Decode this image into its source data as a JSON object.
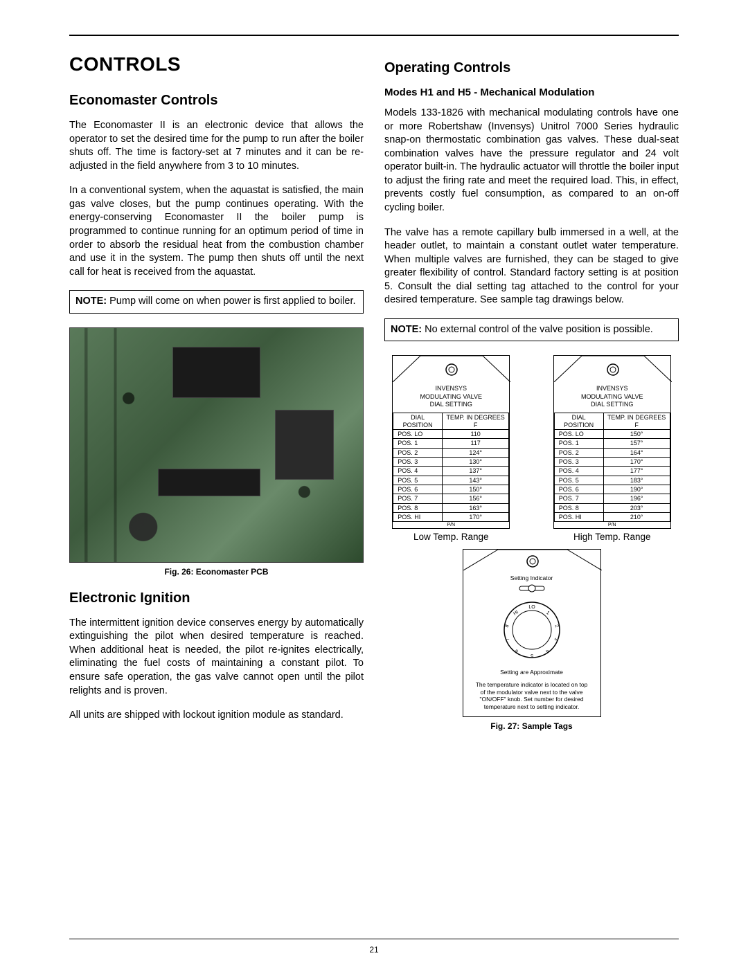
{
  "page_number": "21",
  "main_heading": "CONTROLS",
  "left": {
    "h2a": "Economaster Controls",
    "p1": "The Economaster II is an electronic device that allows the operator to set the desired time for the pump to run after the boiler shuts off. The time is factory-set at 7 minutes and it can be re-adjusted in the field anywhere from 3 to 10 minutes.",
    "p2": "In a conventional system, when the aquastat is satisfied, the main gas valve closes, but the pump continues operating. With the energy-conserving Economaster II the boiler pump is programmed to continue running for an optimum period of time in order to absorb the residual heat from the combustion chamber and use it in the system. The pump then shuts off until the next call for heat is received from the aquastat.",
    "note1_bold": "NOTE:",
    "note1_text": " Pump will come on when power is first applied to boiler.",
    "fig26": "Fig. 26: Economaster PCB",
    "h2b": "Electronic Ignition",
    "p3": "The intermittent ignition device conserves energy by automatically extinguishing the pilot when desired temperature is reached. When additional heat is needed, the pilot re-ignites electrically, eliminating the fuel costs of maintaining a constant pilot. To ensure safe operation, the gas valve cannot open until the pilot relights and is proven.",
    "p4": "All units are shipped with lockout ignition module as standard."
  },
  "right": {
    "h2": "Operating Controls",
    "h3": "Modes H1 and H5 - Mechanical Modulation",
    "p1": "Models 133-1826 with mechanical modulating controls have one or more Robertshaw (Invensys) Unitrol 7000 Series hydraulic snap-on thermostatic combination gas valves. These dual-seat combination valves have the pressure regulator and 24 volt operator built-in. The hydraulic actuator will throttle the boiler input to adjust the firing rate and meet the required load. This, in effect, prevents costly fuel consumption, as compared to an on-off cycling boiler.",
    "p2": "The valve has a remote capillary bulb immersed in a well, at the header outlet, to maintain a constant outlet water temperature. When multiple valves are furnished, they can be staged to give greater flexibility of control. Standard factory setting is at position 5. Consult the dial setting tag attached to the control for your desired temperature. See sample tag drawings below.",
    "note_bold": "NOTE:",
    "note_text": " No external control of the valve position is possible.",
    "tag_header_l1": "INVENSYS",
    "tag_header_l2": "MODULATING VALVE",
    "tag_header_l3": "DIAL SETTING",
    "th_dial": "DIAL POSITION",
    "th_temp": "TEMP. IN DEGREES F",
    "pn": "P/N",
    "low_label": "Low Temp. Range",
    "high_label": "High Temp. Range",
    "low_rows": [
      [
        "POS. LO",
        "110"
      ],
      [
        "POS. 1",
        "117"
      ],
      [
        "POS. 2",
        "124°"
      ],
      [
        "POS. 3",
        "130°"
      ],
      [
        "POS. 4",
        "137°"
      ],
      [
        "POS. 5",
        "143°"
      ],
      [
        "POS. 6",
        "150°"
      ],
      [
        "POS. 7",
        "156°"
      ],
      [
        "POS. 8",
        "163°"
      ],
      [
        "POS. HI",
        "170°"
      ]
    ],
    "high_rows": [
      [
        "POS. LO",
        "150°"
      ],
      [
        "POS. 1",
        "157°"
      ],
      [
        "POS. 2",
        "164°"
      ],
      [
        "POS. 3",
        "170°"
      ],
      [
        "POS. 4",
        "177°"
      ],
      [
        "POS. 5",
        "183°"
      ],
      [
        "POS. 6",
        "190°"
      ],
      [
        "POS. 7",
        "196°"
      ],
      [
        "POS. 8",
        "203°"
      ],
      [
        "POS. HI",
        "210°"
      ]
    ],
    "bottom_tag": {
      "setting_indicator": "Setting Indicator",
      "approx": "Setting are Approximate",
      "desc": "The temperature indicator is located on top of the modulator valve next to the valve \"ON/OFF\" knob. Set number for desired temperature next to setting indicator."
    },
    "fig27": "Fig. 27: Sample Tags"
  }
}
